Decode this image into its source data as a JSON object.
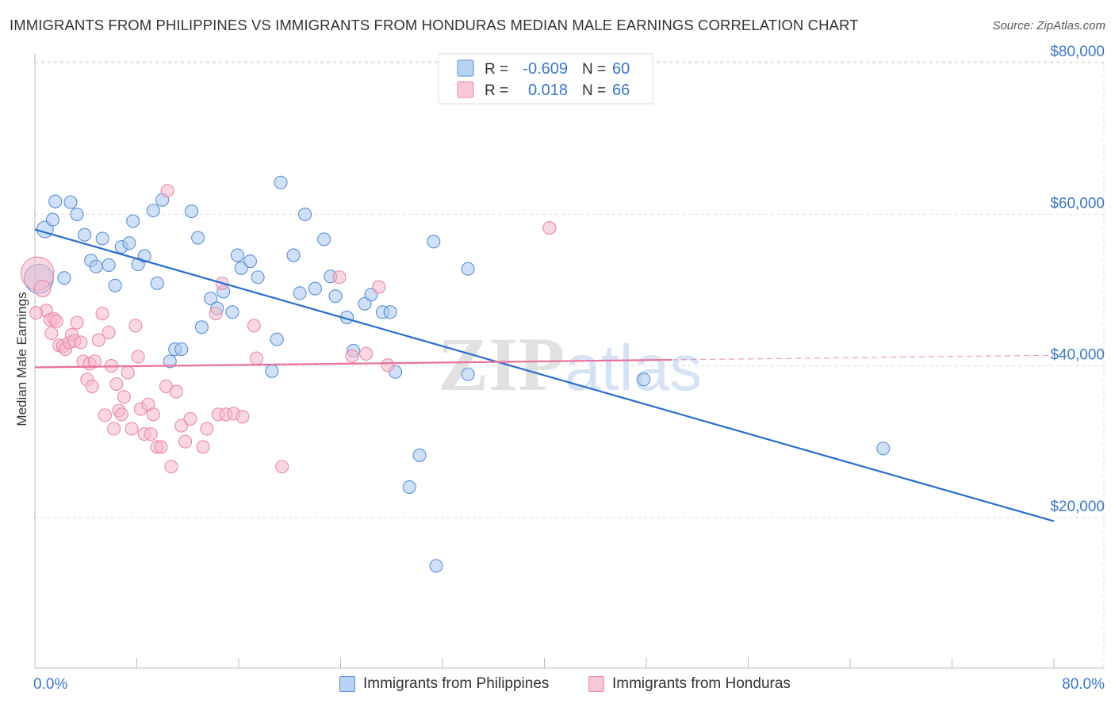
{
  "title": "IMMIGRANTS FROM PHILIPPINES VS IMMIGRANTS FROM HONDURAS MEDIAN MALE EARNINGS CORRELATION CHART",
  "source": "Source: ZipAtlas.com",
  "watermark": {
    "zip": "ZIP",
    "atlas": "atlas"
  },
  "colors": {
    "blue_fill": "#a9c9f0",
    "blue_stroke": "#5b8fd6",
    "blue_line": "#2a6fce",
    "pink_fill": "#f5b8cb",
    "pink_stroke": "#e98aa8",
    "pink_line": "#e8729a",
    "axis_text": "#3b78c9",
    "grid": "#dddddd"
  },
  "legend_top": {
    "rows": [
      {
        "r_label": "R =",
        "r_value": "-0.609",
        "n_label": "N =",
        "n_value": "60"
      },
      {
        "r_label": "R =",
        "r_value": "0.018",
        "n_label": "N =",
        "n_value": "66"
      }
    ]
  },
  "legend_bottom": [
    "Immigrants from Philippines",
    "Immigrants from Honduras"
  ],
  "chart_data": {
    "type": "scatter",
    "title": "IMMIGRANTS FROM PHILIPPINES VS IMMIGRANTS FROM HONDURAS MEDIAN MALE EARNINGS CORRELATION CHART",
    "ylabel": "Median Male Earnings",
    "xlabel": "",
    "xlim": [
      0,
      80
    ],
    "ylim": [
      0,
      84000
    ],
    "x_tick_labels": [
      "0.0%",
      "80.0%"
    ],
    "y_ticks": [
      20000,
      40000,
      60000,
      80000
    ],
    "y_tick_labels": [
      "$20,000",
      "$40,000",
      "$60,000",
      "$80,000"
    ],
    "grid": true,
    "legend_position": "top-center",
    "series": [
      {
        "name": "Immigrants from Philippines",
        "color": "blue",
        "r": -0.609,
        "n": 60,
        "trend": {
          "x": [
            0,
            80
          ],
          "y": [
            58000,
            19500
          ],
          "dashed_from": null
        },
        "points": [
          [
            0.3,
            51500,
            2.3
          ],
          [
            0.8,
            58000,
            1.3
          ],
          [
            1.4,
            59300,
            1
          ],
          [
            1.6,
            61700,
            1
          ],
          [
            2.3,
            51600,
            1
          ],
          [
            2.8,
            61600,
            1
          ],
          [
            3.3,
            60000,
            1
          ],
          [
            3.9,
            57300,
            1
          ],
          [
            4.4,
            53900,
            1
          ],
          [
            4.8,
            53100,
            1
          ],
          [
            5.3,
            56800,
            1
          ],
          [
            5.8,
            53300,
            1
          ],
          [
            6.3,
            50600,
            1
          ],
          [
            6.8,
            55700,
            1
          ],
          [
            7.4,
            56200,
            1
          ],
          [
            7.7,
            59100,
            1
          ],
          [
            8.1,
            53400,
            1
          ],
          [
            8.6,
            54500,
            1
          ],
          [
            9.3,
            60500,
            1
          ],
          [
            9.6,
            50900,
            1
          ],
          [
            10.0,
            61900,
            1
          ],
          [
            10.6,
            40600,
            1
          ],
          [
            11.0,
            42200,
            1
          ],
          [
            11.5,
            42200,
            1
          ],
          [
            12.3,
            60400,
            1
          ],
          [
            12.8,
            56900,
            1
          ],
          [
            13.1,
            45100,
            1
          ],
          [
            13.8,
            48900,
            1
          ],
          [
            14.3,
            47600,
            1
          ],
          [
            14.8,
            49800,
            1
          ],
          [
            15.5,
            47100,
            1
          ],
          [
            15.9,
            54600,
            1
          ],
          [
            16.2,
            52900,
            1
          ],
          [
            16.9,
            53800,
            1
          ],
          [
            17.5,
            51700,
            1
          ],
          [
            18.6,
            39300,
            1
          ],
          [
            19.0,
            43500,
            1
          ],
          [
            19.3,
            64200,
            1
          ],
          [
            20.3,
            54600,
            1
          ],
          [
            20.8,
            49600,
            1
          ],
          [
            21.2,
            60000,
            1
          ],
          [
            22.0,
            50200,
            1
          ],
          [
            22.7,
            56700,
            1
          ],
          [
            23.2,
            51800,
            1
          ],
          [
            23.6,
            49200,
            1
          ],
          [
            24.5,
            46400,
            1
          ],
          [
            25.0,
            42000,
            1
          ],
          [
            25.9,
            48200,
            1
          ],
          [
            26.4,
            49400,
            1
          ],
          [
            27.3,
            47100,
            1
          ],
          [
            27.9,
            47100,
            1
          ],
          [
            28.3,
            39200,
            1
          ],
          [
            30.2,
            28200,
            1
          ],
          [
            29.4,
            24000,
            1
          ],
          [
            31.5,
            13600,
            1
          ],
          [
            31.3,
            56400,
            1
          ],
          [
            34.0,
            52800,
            1
          ],
          [
            34.0,
            38900,
            1
          ],
          [
            47.8,
            38200,
            1
          ],
          [
            66.6,
            29100,
            1
          ]
        ]
      },
      {
        "name": "Immigrants from Honduras",
        "color": "pink",
        "r": 0.018,
        "n": 66,
        "trend": {
          "x": [
            0,
            80
          ],
          "y": [
            39800,
            41400
          ],
          "dashed_from": 50
        },
        "points": [
          [
            0.2,
            52200,
            2.6
          ],
          [
            0.6,
            50200,
            1.3
          ],
          [
            0.9,
            47300,
            1
          ],
          [
            1.2,
            46100,
            1
          ],
          [
            1.3,
            44300,
            1
          ],
          [
            1.5,
            46200,
            1
          ],
          [
            1.7,
            45900,
            1
          ],
          [
            1.9,
            42700,
            1
          ],
          [
            2.2,
            42600,
            1
          ],
          [
            2.4,
            42200,
            1
          ],
          [
            2.7,
            43100,
            1
          ],
          [
            2.9,
            44100,
            1
          ],
          [
            3.1,
            43300,
            1
          ],
          [
            3.3,
            45700,
            1
          ],
          [
            3.6,
            43100,
            1
          ],
          [
            3.8,
            40600,
            1
          ],
          [
            4.1,
            38200,
            1
          ],
          [
            4.3,
            40300,
            1
          ],
          [
            4.5,
            37300,
            1
          ],
          [
            4.7,
            40600,
            1
          ],
          [
            5.0,
            43400,
            1
          ],
          [
            5.3,
            46900,
            1
          ],
          [
            5.5,
            33500,
            1
          ],
          [
            5.8,
            44400,
            1
          ],
          [
            6.0,
            40000,
            1
          ],
          [
            6.2,
            31700,
            1
          ],
          [
            6.4,
            37600,
            1
          ],
          [
            6.6,
            34100,
            1
          ],
          [
            6.8,
            33600,
            1
          ],
          [
            7.0,
            35900,
            1
          ],
          [
            7.3,
            39100,
            1
          ],
          [
            7.6,
            31700,
            1
          ],
          [
            7.9,
            45300,
            1
          ],
          [
            8.1,
            41200,
            1
          ],
          [
            8.3,
            34300,
            1
          ],
          [
            8.6,
            31000,
            1
          ],
          [
            8.9,
            34900,
            1
          ],
          [
            9.1,
            31000,
            1
          ],
          [
            9.3,
            33600,
            1
          ],
          [
            9.6,
            29300,
            1
          ],
          [
            9.9,
            29300,
            1
          ],
          [
            10.3,
            37300,
            1
          ],
          [
            10.4,
            63100,
            1
          ],
          [
            10.7,
            26700,
            1
          ],
          [
            11.1,
            36600,
            1
          ],
          [
            11.5,
            32100,
            1
          ],
          [
            11.8,
            30000,
            1
          ],
          [
            12.2,
            33000,
            1
          ],
          [
            13.2,
            29300,
            1
          ],
          [
            13.5,
            31700,
            1
          ],
          [
            14.2,
            46900,
            1
          ],
          [
            14.7,
            50900,
            1
          ],
          [
            14.4,
            33600,
            1
          ],
          [
            15.0,
            33600,
            1
          ],
          [
            15.6,
            33700,
            1
          ],
          [
            16.3,
            33300,
            1
          ],
          [
            17.4,
            41000,
            1
          ],
          [
            17.2,
            45300,
            1
          ],
          [
            19.4,
            26700,
            1
          ],
          [
            23.9,
            51700,
            1
          ],
          [
            24.9,
            41300,
            1
          ],
          [
            26.0,
            41600,
            1
          ],
          [
            27.0,
            50400,
            1
          ],
          [
            27.7,
            40100,
            1
          ],
          [
            40.4,
            58200,
            1
          ],
          [
            0.1,
            47000,
            1
          ]
        ]
      }
    ]
  }
}
